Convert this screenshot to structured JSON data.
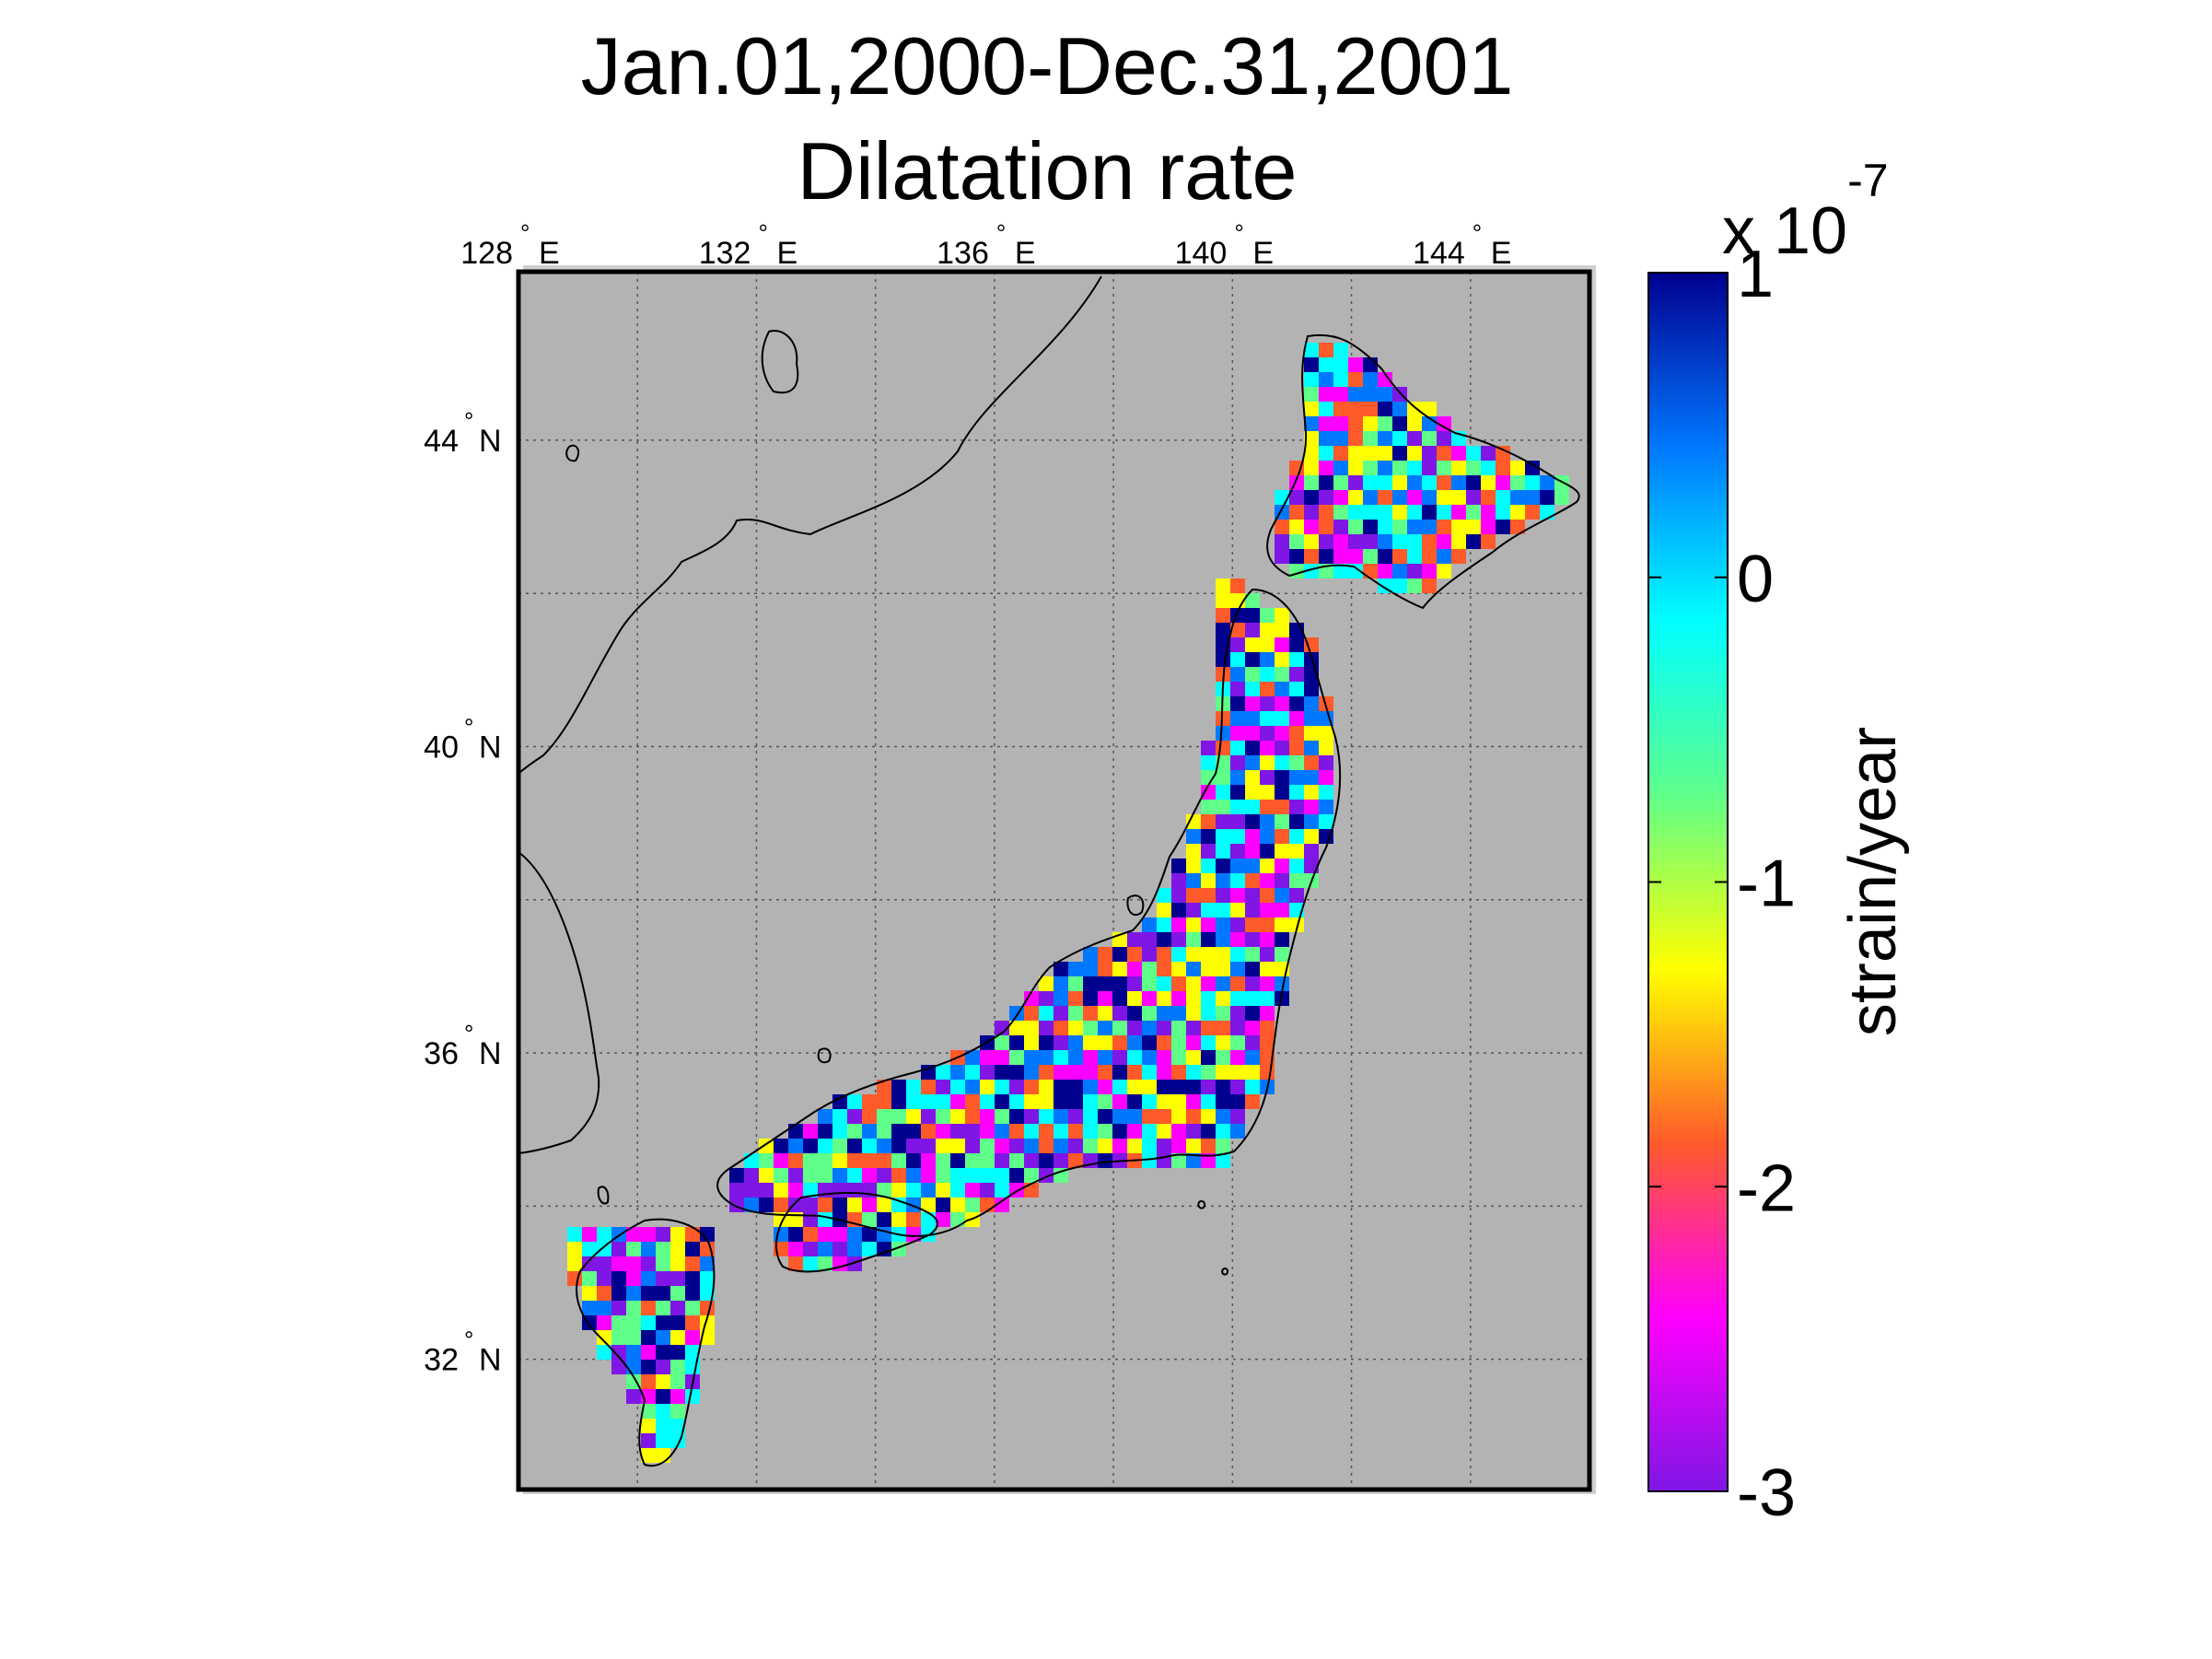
{
  "title_lines": [
    "Jan.01,2000-Dec.31,2001",
    "Dilatation rate"
  ],
  "map": {
    "lon_ticks": [
      {
        "value": 128,
        "deg": "128",
        "hemi": "E"
      },
      {
        "value": 132,
        "deg": "132",
        "hemi": "E"
      },
      {
        "value": 136,
        "deg": "136",
        "hemi": "E"
      },
      {
        "value": 140,
        "deg": "140",
        "hemi": "E"
      },
      {
        "value": 144,
        "deg": "144",
        "hemi": "E"
      }
    ],
    "lat_ticks": [
      {
        "value": 44,
        "deg": "44",
        "hemi": "N"
      },
      {
        "value": 40,
        "deg": "40",
        "hemi": "N"
      },
      {
        "value": 36,
        "deg": "36",
        "hemi": "N"
      },
      {
        "value": 32,
        "deg": "32",
        "hemi": "N"
      }
    ],
    "lon_range": [
      128,
      146
    ],
    "lat_range": [
      30.3,
      46.2
    ],
    "grid": true,
    "colors": {
      "ocean": "#b3b3b3",
      "frame": "#000000",
      "grid": "#555555",
      "coast": "#000000"
    }
  },
  "colorbar": {
    "exponent_label": "x 10",
    "exponent": "-7",
    "range": [
      -3,
      1
    ],
    "ticks": [
      {
        "value": 1,
        "label": "1"
      },
      {
        "value": 0,
        "label": "0"
      },
      {
        "value": -1,
        "label": "-1"
      },
      {
        "value": -2,
        "label": "-2"
      },
      {
        "value": -3,
        "label": "-3"
      }
    ],
    "label": "strain/year",
    "colormap": [
      "#7f16e6",
      "#ff00ff",
      "#ff5a2a",
      "#ffff00",
      "#5fff8a",
      "#00ffff",
      "#0077ff",
      "#00008f"
    ]
  }
}
